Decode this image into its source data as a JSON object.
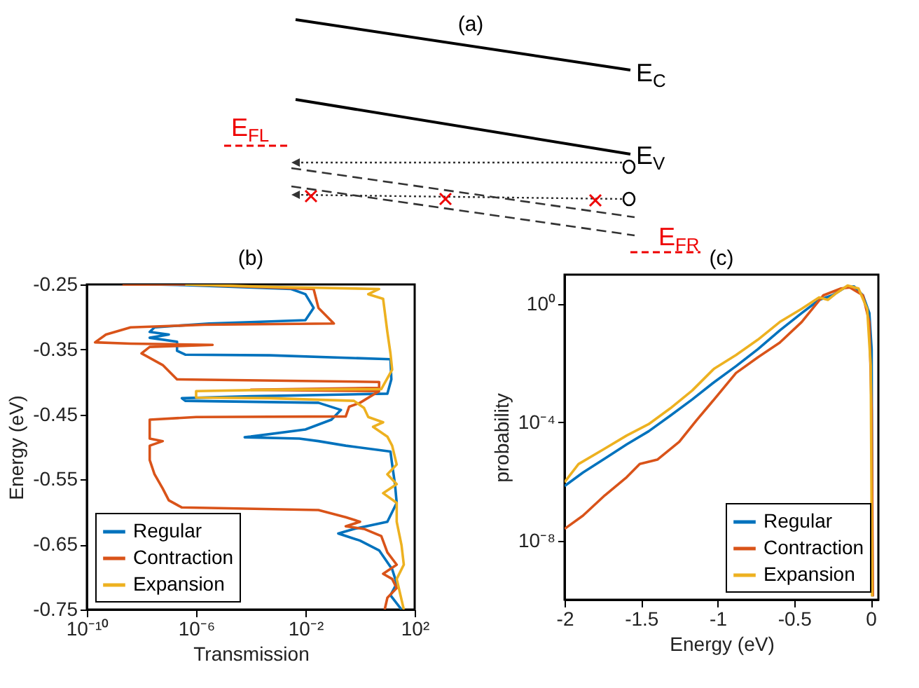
{
  "chart_data": [
    {
      "type": "other",
      "title": "(a)",
      "annotations": [
        "E$_{C}$",
        "E$_{V}$",
        "E$_{FL}$",
        "E$_{FR}$"
      ]
    },
    {
      "type": "line",
      "title": "(b)",
      "xlabel": "Transmission",
      "ylabel": "Energy (eV)",
      "log": "x",
      "xlim": [
        1e-10,
        100
      ],
      "xticks": [
        {
          "value": 1e-10,
          "label": "10⁻¹⁰"
        },
        {
          "value": 1e-06,
          "label": "10⁻⁶"
        },
        {
          "value": 0.01,
          "label": "10⁻²"
        },
        {
          "value": 100,
          "label": "10²"
        }
      ],
      "ylim": [
        -0.75,
        -0.25
      ],
      "yticks": [
        -0.25,
        -0.35,
        -0.45,
        -0.55,
        -0.65,
        -0.75
      ],
      "legend": "bottom left",
      "series": [
        {
          "name": "Regular",
          "color": "#0072bd",
          "x": [
            2e-08,
            4e-07,
            0.003,
            0.01,
            0.02,
            0.01,
            0.0001,
            3e-06,
            3e-08,
            2e-08,
            1e-07,
            2e-08,
            2e-07,
            2e-07,
            4e-07,
            0.0005,
            13,
            14,
            10,
            0.0001,
            3e-07,
            4e-07,
            0.03,
            0.2,
            0.09,
            0.01,
            0.0001,
            6e-05,
            0.006,
            0.03,
            0.3,
            13,
            15,
            19,
            22,
            10,
            0.6,
            0.16,
            1,
            5,
            15,
            22,
            13,
            33
          ],
          "values": [
            -0.25,
            -0.251,
            -0.257,
            -0.265,
            -0.286,
            -0.305,
            -0.308,
            -0.31,
            -0.316,
            -0.323,
            -0.327,
            -0.332,
            -0.338,
            -0.352,
            -0.358,
            -0.359,
            -0.365,
            -0.396,
            -0.418,
            -0.422,
            -0.425,
            -0.429,
            -0.432,
            -0.443,
            -0.458,
            -0.473,
            -0.484,
            -0.485,
            -0.487,
            -0.491,
            -0.498,
            -0.507,
            -0.527,
            -0.557,
            -0.586,
            -0.615,
            -0.626,
            -0.633,
            -0.644,
            -0.659,
            -0.688,
            -0.71,
            -0.728,
            -0.75
          ]
        },
        {
          "name": "Contraction",
          "color": "#d95319",
          "x": [
            2e-09,
            4e-07,
            0.02,
            0.03,
            0.11,
            2e-06,
            4e-09,
            5e-10,
            2e-10,
            4e-09,
            4e-06,
            2e-08,
            1e-08,
            6e-08,
            2e-07,
            5,
            5,
            0.0001,
            5,
            1,
            0.4,
            0.3,
            1e-06,
            2e-08,
            2e-08,
            6e-08,
            2e-08,
            2e-08,
            3e-08,
            6e-08,
            1e-07,
            3e-07,
            0.03,
            0.3,
            1,
            0.3,
            1.4,
            6,
            10,
            22,
            7,
            15,
            22,
            10,
            8
          ],
          "values": [
            -0.25,
            -0.25,
            -0.257,
            -0.286,
            -0.31,
            -0.312,
            -0.316,
            -0.327,
            -0.339,
            -0.341,
            -0.343,
            -0.346,
            -0.356,
            -0.374,
            -0.396,
            -0.4,
            -0.409,
            -0.412,
            -0.414,
            -0.432,
            -0.438,
            -0.453,
            -0.454,
            -0.458,
            -0.487,
            -0.491,
            -0.498,
            -0.52,
            -0.542,
            -0.564,
            -0.582,
            -0.593,
            -0.597,
            -0.608,
            -0.615,
            -0.622,
            -0.626,
            -0.637,
            -0.662,
            -0.681,
            -0.695,
            -0.703,
            -0.717,
            -0.732,
            -0.75
          ]
        },
        {
          "name": "Expansion",
          "color": "#edb120",
          "x": [
            4e-07,
            0.001,
            5,
            2,
            7,
            10,
            13,
            15,
            6,
            0.0005,
            1e-06,
            1e-06,
            1e-06,
            0.0005,
            0.6,
            1.4,
            2,
            7,
            3,
            10,
            15,
            22,
            10,
            22,
            7,
            22,
            22,
            33,
            40,
            22,
            40
          ],
          "values": [
            -0.25,
            -0.254,
            -0.257,
            -0.265,
            -0.272,
            -0.323,
            -0.356,
            -0.381,
            -0.411,
            -0.412,
            -0.414,
            -0.418,
            -0.424,
            -0.425,
            -0.429,
            -0.44,
            -0.454,
            -0.462,
            -0.469,
            -0.484,
            -0.498,
            -0.527,
            -0.542,
            -0.557,
            -0.571,
            -0.586,
            -0.615,
            -0.651,
            -0.681,
            -0.703,
            -0.75
          ]
        }
      ]
    },
    {
      "type": "line",
      "title": "(c)",
      "xlabel": "Energy (eV)",
      "ylabel": "probability",
      "log": "y",
      "xlim": [
        -2,
        0.05
      ],
      "xticks": [
        -2,
        -1.5,
        -1,
        -0.5,
        0
      ],
      "ylim": [
        1e-10,
        10
      ],
      "yticks": [
        {
          "value": 1e-08,
          "label": "10⁻⁸"
        },
        {
          "value": 0.0001,
          "label": "10⁻⁴"
        },
        {
          "value": 1,
          "label": "10⁰"
        }
      ],
      "legend": "bottom right",
      "series": [
        {
          "name": "Regular",
          "color": "#0072bd",
          "x": [
            -2,
            -1.88,
            -1.737,
            -1.594,
            -1.451,
            -1.309,
            -1.166,
            -1.023,
            -0.88,
            -0.737,
            -0.594,
            -0.451,
            -0.337,
            -0.251,
            -0.166,
            -0.109,
            -0.051,
            -0.009,
            0.006,
            0.011
          ],
          "values": [
            7e-07,
            2e-06,
            6e-06,
            1.8e-05,
            5e-05,
            0.00017,
            0.0006,
            0.0023,
            0.008,
            0.03,
            0.13,
            0.5,
            1.4,
            2,
            3.7,
            4,
            2,
            0.5,
            0.03,
            1.3e-10
          ]
        },
        {
          "name": "Contraction",
          "color": "#d95319",
          "x": [
            -2,
            -1.88,
            -1.737,
            -1.594,
            -1.509,
            -1.394,
            -1.251,
            -1.137,
            -1.023,
            -0.88,
            -0.737,
            -0.594,
            -0.451,
            -0.309,
            -0.194,
            -0.137,
            -0.051,
            -0.009,
            0.006,
            0.014
          ],
          "values": [
            2.5e-08,
            7e-08,
            3.4e-07,
            1.4e-06,
            3.9e-06,
            5.5e-06,
            2.2e-05,
            0.00012,
            0.0006,
            0.0047,
            0.016,
            0.05,
            0.25,
            2,
            3.4,
            3.7,
            2,
            0.25,
            0.00025,
            1.3e-10
          ]
        },
        {
          "name": "Expansion",
          "color": "#edb120",
          "x": [
            -2,
            -1.909,
            -1.737,
            -1.594,
            -1.451,
            -1.309,
            -1.166,
            -1.023,
            -0.88,
            -0.737,
            -0.594,
            -0.451,
            -0.337,
            -0.28,
            -0.223,
            -0.151,
            -0.08,
            -0.023,
            0,
            0.009
          ],
          "values": [
            9.5e-07,
            3.9e-06,
            1.3e-05,
            3.6e-05,
            8.7e-05,
            0.0003,
            0.0012,
            0.0066,
            0.019,
            0.063,
            0.25,
            0.7,
            1.7,
            1.4,
            2.4,
            4.3,
            3.4,
            0.7,
            0.008,
            1.3e-10
          ]
        }
      ]
    }
  ]
}
